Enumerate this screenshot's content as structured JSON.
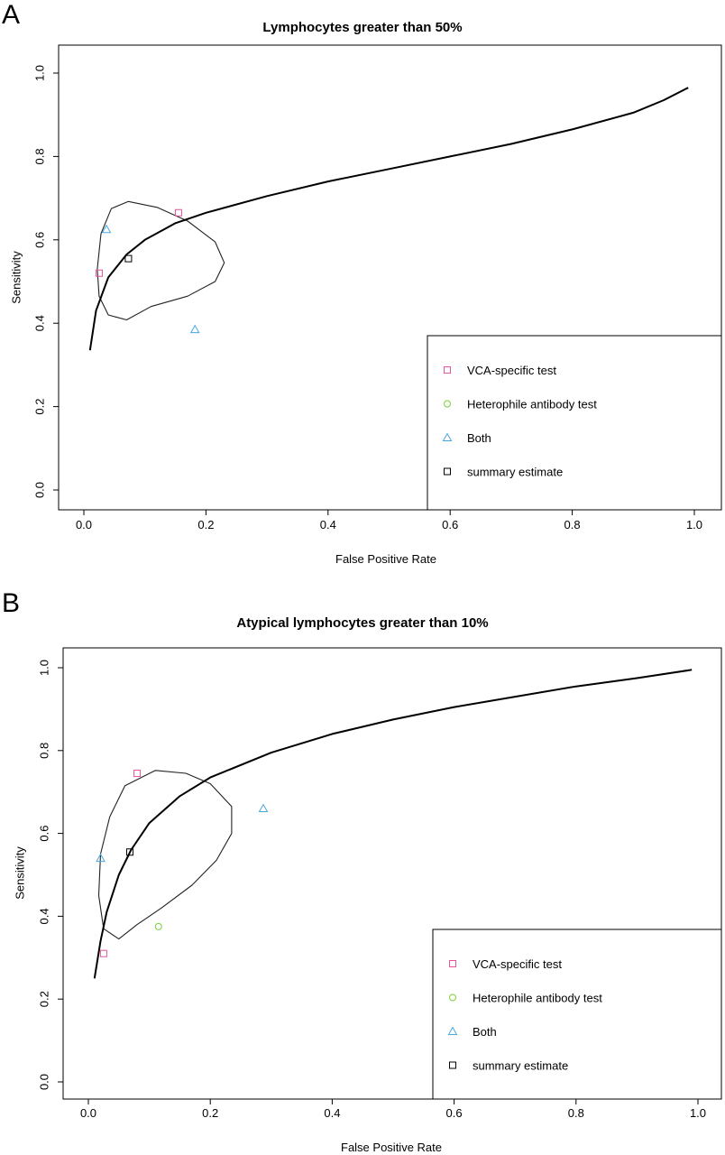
{
  "chart_data": [
    {
      "panel_label": "A",
      "type": "scatter",
      "title": "Lymphocytes greater than 50%",
      "xlabel": "False Positive Rate",
      "ylabel": "Sensitivity",
      "xlim": [
        0.0,
        1.0
      ],
      "ylim": [
        0.0,
        1.0
      ],
      "xticks": [
        "0.0",
        "0.2",
        "0.4",
        "0.6",
        "0.8",
        "1.0"
      ],
      "yticks": [
        "0.0",
        "0.2",
        "0.4",
        "0.6",
        "0.8",
        "1.0"
      ],
      "grid": false,
      "legend_position": "bottom-right",
      "legend": [
        {
          "label": "VCA-specific test",
          "marker": "square",
          "color": "#e0559b"
        },
        {
          "label": "Heterophile antibody test",
          "marker": "circle",
          "color": "#7ad03a"
        },
        {
          "label": "Both",
          "marker": "triangle",
          "color": "#4aa8e0"
        },
        {
          "label": "summary estimate",
          "marker": "square",
          "color": "#000000"
        }
      ],
      "series": [
        {
          "name": "VCA-specific test",
          "marker": "square",
          "color": "#e0559b",
          "points": [
            [
              0.025,
              0.52
            ],
            [
              0.155,
              0.665
            ]
          ]
        },
        {
          "name": "Heterophile antibody test",
          "marker": "circle",
          "color": "#7ad03a",
          "points": []
        },
        {
          "name": "Both",
          "marker": "triangle",
          "color": "#4aa8e0",
          "points": [
            [
              0.037,
              0.625
            ],
            [
              0.182,
              0.385
            ]
          ]
        },
        {
          "name": "summary estimate",
          "marker": "square",
          "color": "#000000",
          "points": [
            [
              0.073,
              0.555
            ]
          ]
        }
      ],
      "sroc_curve": [
        [
          0.01,
          0.335
        ],
        [
          0.02,
          0.43
        ],
        [
          0.04,
          0.51
        ],
        [
          0.07,
          0.565
        ],
        [
          0.1,
          0.6
        ],
        [
          0.15,
          0.64
        ],
        [
          0.2,
          0.665
        ],
        [
          0.3,
          0.705
        ],
        [
          0.4,
          0.74
        ],
        [
          0.5,
          0.77
        ],
        [
          0.6,
          0.8
        ],
        [
          0.7,
          0.83
        ],
        [
          0.8,
          0.865
        ],
        [
          0.9,
          0.905
        ],
        [
          0.95,
          0.935
        ],
        [
          0.99,
          0.965
        ]
      ],
      "confidence_region": [
        [
          0.073,
          0.692
        ],
        [
          0.12,
          0.678
        ],
        [
          0.17,
          0.645
        ],
        [
          0.215,
          0.595
        ],
        [
          0.23,
          0.545
        ],
        [
          0.215,
          0.5
        ],
        [
          0.17,
          0.465
        ],
        [
          0.11,
          0.44
        ],
        [
          0.07,
          0.408
        ],
        [
          0.04,
          0.42
        ],
        [
          0.025,
          0.465
        ],
        [
          0.022,
          0.53
        ],
        [
          0.028,
          0.615
        ],
        [
          0.045,
          0.675
        ]
      ]
    },
    {
      "panel_label": "B",
      "type": "scatter",
      "title": "Atypical lymphocytes greater than 10%",
      "xlabel": "False Positive Rate",
      "ylabel": "Sensitivity",
      "xlim": [
        0.0,
        1.0
      ],
      "ylim": [
        0.0,
        1.0
      ],
      "xticks": [
        "0.0",
        "0.2",
        "0.4",
        "0.6",
        "0.8",
        "1.0"
      ],
      "yticks": [
        "0.0",
        "0.2",
        "0.4",
        "0.6",
        "0.8",
        "1.0"
      ],
      "grid": false,
      "legend_position": "bottom-right",
      "legend": [
        {
          "label": "VCA-specific test",
          "marker": "square",
          "color": "#e0559b"
        },
        {
          "label": "Heterophile antibody test",
          "marker": "circle",
          "color": "#7ad03a"
        },
        {
          "label": "Both",
          "marker": "triangle",
          "color": "#4aa8e0"
        },
        {
          "label": "summary estimate",
          "marker": "square",
          "color": "#000000"
        }
      ],
      "series": [
        {
          "name": "VCA-specific test",
          "marker": "square",
          "color": "#e0559b",
          "points": [
            [
              0.025,
              0.31
            ],
            [
              0.08,
              0.745
            ]
          ]
        },
        {
          "name": "Heterophile antibody test",
          "marker": "circle",
          "color": "#7ad03a",
          "points": [
            [
              0.115,
              0.375
            ]
          ]
        },
        {
          "name": "Both",
          "marker": "triangle",
          "color": "#4aa8e0",
          "points": [
            [
              0.02,
              0.54
            ],
            [
              0.287,
              0.66
            ]
          ]
        },
        {
          "name": "summary estimate",
          "marker": "square",
          "color": "#000000",
          "points": [
            [
              0.068,
              0.555
            ]
          ]
        }
      ],
      "sroc_curve": [
        [
          0.01,
          0.25
        ],
        [
          0.02,
          0.34
        ],
        [
          0.03,
          0.41
        ],
        [
          0.05,
          0.5
        ],
        [
          0.07,
          0.56
        ],
        [
          0.1,
          0.625
        ],
        [
          0.15,
          0.69
        ],
        [
          0.2,
          0.735
        ],
        [
          0.3,
          0.795
        ],
        [
          0.4,
          0.84
        ],
        [
          0.5,
          0.875
        ],
        [
          0.6,
          0.905
        ],
        [
          0.7,
          0.93
        ],
        [
          0.8,
          0.955
        ],
        [
          0.9,
          0.975
        ],
        [
          0.99,
          0.995
        ]
      ],
      "confidence_region": [
        [
          0.11,
          0.752
        ],
        [
          0.16,
          0.745
        ],
        [
          0.2,
          0.72
        ],
        [
          0.235,
          0.665
        ],
        [
          0.235,
          0.6
        ],
        [
          0.21,
          0.535
        ],
        [
          0.17,
          0.475
        ],
        [
          0.12,
          0.42
        ],
        [
          0.08,
          0.38
        ],
        [
          0.05,
          0.345
        ],
        [
          0.025,
          0.37
        ],
        [
          0.017,
          0.45
        ],
        [
          0.02,
          0.55
        ],
        [
          0.035,
          0.64
        ],
        [
          0.06,
          0.715
        ]
      ]
    }
  ]
}
